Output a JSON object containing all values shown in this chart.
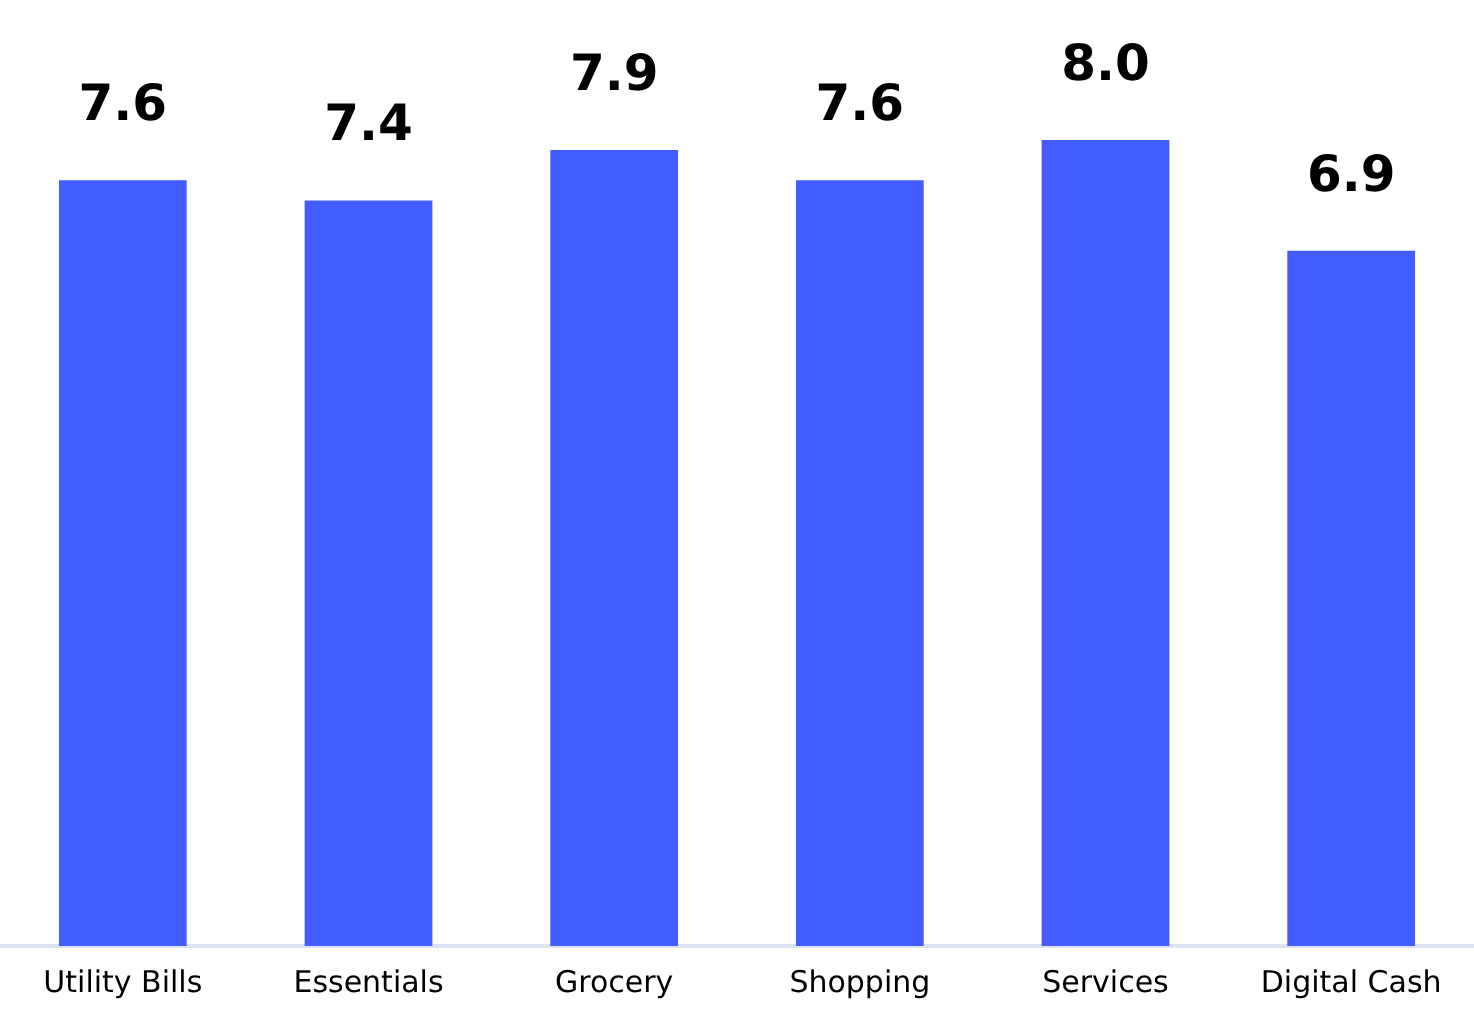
{
  "chart_data": {
    "type": "bar",
    "categories": [
      "Utility Bills",
      "Essentials",
      "Grocery",
      "Shopping",
      "Services",
      "Digital Cash"
    ],
    "values": [
      7.6,
      7.4,
      7.9,
      7.6,
      8.0,
      6.9
    ],
    "value_labels": [
      "7.6",
      "7.4",
      "7.9",
      "7.6",
      "8.0",
      "6.9"
    ],
    "color": "#425cff",
    "tick_labels": "x",
    "grid": false,
    "legend": false
  }
}
